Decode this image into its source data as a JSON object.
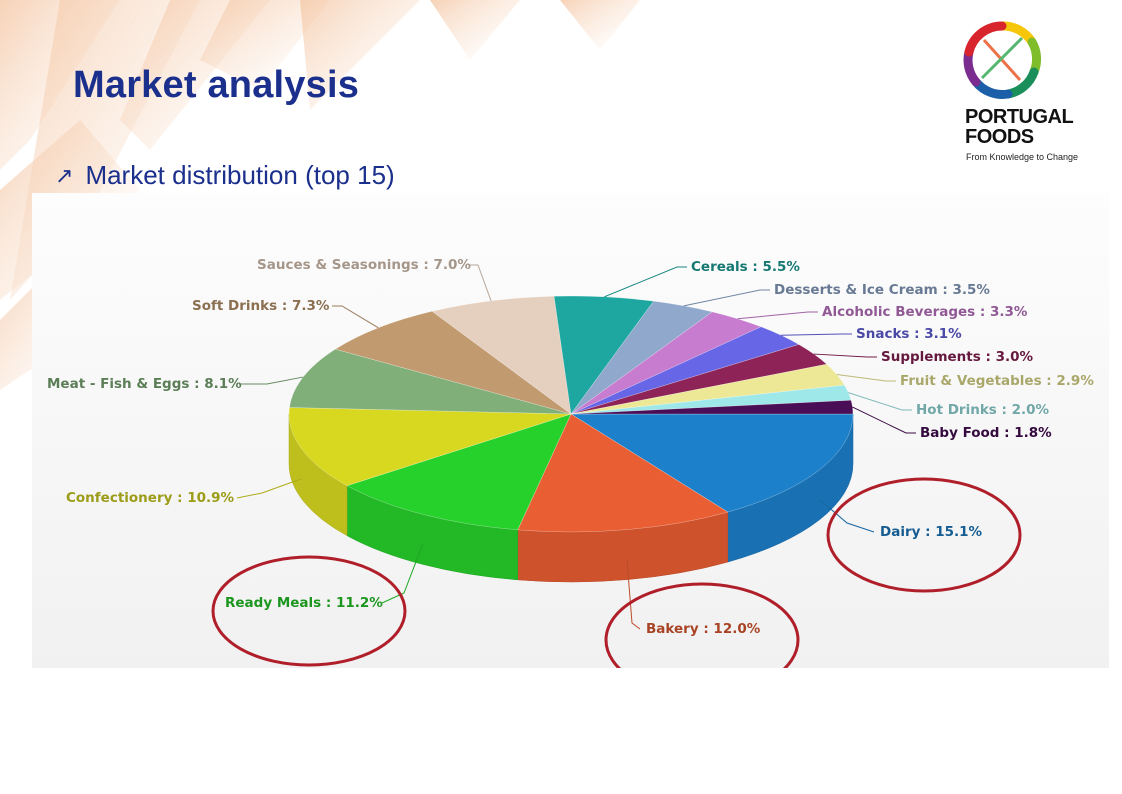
{
  "slide": {
    "title": "Market analysis",
    "bullet": "Market distribution (top 15)",
    "bullet_icon": "arrow-up-right-icon"
  },
  "logo": {
    "name_line1": "PORTUGAL",
    "name_line2": "FOODS",
    "tagline": "From Knowledge to Change"
  },
  "highlight_color": "#b01e2a",
  "highlighted_categories": [
    "Ready Meals",
    "Bakery",
    "Dairy"
  ],
  "chart_data": {
    "type": "pie",
    "title": "",
    "style": "3d",
    "slices": [
      {
        "label": "Dairy",
        "value": 15.1,
        "display": "Dairy : 15.1%",
        "color": "#1c80cb"
      },
      {
        "label": "Bakery",
        "value": 12.0,
        "display": "Bakery : 12.0%",
        "color": "#ea5e33"
      },
      {
        "label": "Ready Meals",
        "value": 11.2,
        "display": "Ready Meals : 11.2%",
        "color": "#27d12b"
      },
      {
        "label": "Confectionery",
        "value": 10.9,
        "display": "Confectionery : 10.9%",
        "color": "#d8d821"
      },
      {
        "label": "Meat - Fish & Eggs",
        "value": 8.1,
        "display": "Meat - Fish & Eggs : 8.1%",
        "color": "#80af79"
      },
      {
        "label": "Soft Drinks",
        "value": 7.3,
        "display": "Soft Drinks : 7.3%",
        "color": "#c19a70"
      },
      {
        "label": "Sauces & Seasonings",
        "value": 7.0,
        "display": "Sauces & Seasonings : 7.0%",
        "color": "#e5d0bf"
      },
      {
        "label": "Cereals",
        "value": 5.5,
        "display": "Cereals : 5.5%",
        "color": "#1ea7a0"
      },
      {
        "label": "Desserts & Ice Cream",
        "value": 3.5,
        "display": "Desserts & Ice Cream : 3.5%",
        "color": "#8fa8cc"
      },
      {
        "label": "Alcoholic Beverages",
        "value": 3.3,
        "display": "Alcoholic Beverages : 3.3%",
        "color": "#c87ccf"
      },
      {
        "label": "Snacks",
        "value": 3.1,
        "display": "Snacks : 3.1%",
        "color": "#6766e6"
      },
      {
        "label": "Supplements",
        "value": 3.0,
        "display": "Supplements : 3.0%",
        "color": "#8e2358"
      },
      {
        "label": "Fruit & Vegetables",
        "value": 2.9,
        "display": "Fruit & Vegetables : 2.9%",
        "color": "#ece895"
      },
      {
        "label": "Hot Drinks",
        "value": 2.0,
        "display": "Hot Drinks : 2.0%",
        "color": "#9fe8ea"
      },
      {
        "label": "Baby Food",
        "value": 1.8,
        "display": "Baby Food : 1.8%",
        "color": "#4a0e57"
      }
    ]
  }
}
